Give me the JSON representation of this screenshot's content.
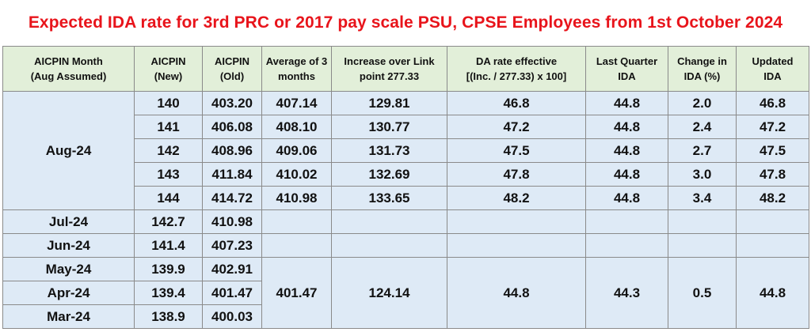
{
  "title": "Expected IDA rate for 3rd PRC or 2017 pay scale PSU, CPSE Employees from 1st October 2024",
  "headers": {
    "month": [
      "AICPIN Month",
      "(Aug Assumed)"
    ],
    "aicpin_new": [
      "AICPIN",
      "(New)"
    ],
    "aicpin_old": [
      "AICPIN",
      "(Old)"
    ],
    "average": [
      "Average of 3",
      "months"
    ],
    "increase": [
      "Increase over Link",
      "point 277.33"
    ],
    "da_rate": [
      "DA rate effective",
      "[(Inc. / 277.33) x 100]"
    ],
    "last_ida": [
      "Last Quarter",
      "IDA"
    ],
    "change": [
      "Change in",
      "IDA (%)"
    ],
    "updated": [
      "Updated",
      "IDA"
    ]
  },
  "aug_group": {
    "month": "Aug-24",
    "rows": [
      {
        "new": "140",
        "old": "403.20",
        "avg": "407.14",
        "inc": "129.81",
        "da": "46.8",
        "last": "44.8",
        "change": "2.0",
        "updated": "46.8"
      },
      {
        "new": "141",
        "old": "406.08",
        "avg": "408.10",
        "inc": "130.77",
        "da": "47.2",
        "last": "44.8",
        "change": "2.4",
        "updated": "47.2"
      },
      {
        "new": "142",
        "old": "408.96",
        "avg": "409.06",
        "inc": "131.73",
        "da": "47.5",
        "last": "44.8",
        "change": "2.7",
        "updated": "47.5"
      },
      {
        "new": "143",
        "old": "411.84",
        "avg": "410.02",
        "inc": "132.69",
        "da": "47.8",
        "last": "44.8",
        "change": "3.0",
        "updated": "47.8"
      },
      {
        "new": "144",
        "old": "414.72",
        "avg": "410.98",
        "inc": "133.65",
        "da": "48.2",
        "last": "44.8",
        "change": "3.4",
        "updated": "48.2"
      }
    ]
  },
  "past_rows": [
    {
      "month": "Jul-24",
      "new": "142.7",
      "old": "410.98"
    },
    {
      "month": "Jun-24",
      "new": "141.4",
      "old": "407.23"
    },
    {
      "month": "May-24",
      "new": "139.9",
      "old": "402.91"
    },
    {
      "month": "Apr-24",
      "new": "139.4",
      "old": "401.47"
    },
    {
      "month": "Mar-24",
      "new": "138.9",
      "old": "400.03"
    }
  ],
  "past_summary": {
    "avg": "401.47",
    "inc": "124.14",
    "da": "44.8",
    "last": "44.3",
    "change": "0.5",
    "updated": "44.8"
  }
}
